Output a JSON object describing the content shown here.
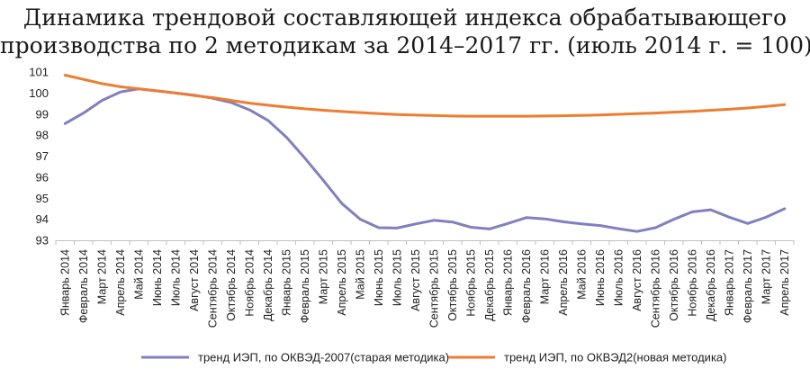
{
  "chart_data": {
    "type": "line",
    "title_line1": "Динамика трендовой составляющей индекса обрабатывающего",
    "title_line2": "производства по 2 методикам за 2014–2017 гг. (июль 2014 г. = 100)",
    "ylim": [
      93,
      101
    ],
    "yticks": [
      93,
      94,
      95,
      96,
      97,
      98,
      99,
      100,
      101
    ],
    "grid": false,
    "legend_position": "bottom",
    "categories": [
      "Январь 2014",
      "Февраль 2014",
      "Март 2014",
      "Апрель 2014",
      "Май 2014",
      "Июнь 2014",
      "Июль 2014",
      "Август 2014",
      "Сентябрь 2014",
      "Октябрь 2014",
      "Ноябрь 2014",
      "Декабрь 2014",
      "Январь 2015",
      "Февраль 2015",
      "Март 2015",
      "Апрель 2015",
      "Май 2015",
      "Июнь 2015",
      "Июль 2015",
      "Август 2015",
      "Сентябрь 2015",
      "Октябрь 2015",
      "Ноябрь 2015",
      "Декабрь 2015",
      "Январь 2016",
      "Февраль 2016",
      "Март 2016",
      "Апрель 2016",
      "Май 2016",
      "Июнь 2016",
      "Июль 2016",
      "Август 2016",
      "Сентябрь 2016",
      "Октябрь 2016",
      "Ноябрь 2016",
      "Декабрь 2016",
      "Январь 2017",
      "Февраль 2017",
      "Март 2017",
      "Апрель 2017"
    ],
    "series": [
      {
        "name": "тренд  ИЭП, по ОКВЭД-2007(старая методика)",
        "color": "#8080bf",
        "values": [
          98.55,
          99.05,
          99.65,
          100.05,
          100.2,
          100.1,
          100.0,
          99.9,
          99.75,
          99.55,
          99.2,
          98.7,
          97.9,
          96.9,
          95.85,
          94.75,
          94.0,
          93.6,
          93.58,
          93.78,
          93.95,
          93.87,
          93.62,
          93.54,
          93.8,
          94.08,
          94.02,
          93.88,
          93.78,
          93.7,
          93.55,
          93.42,
          93.6,
          94.0,
          94.35,
          94.45,
          94.1,
          93.8,
          94.1,
          94.5
        ]
      },
      {
        "name": "тренд  ИЭП, по ОКВЭД2(новая методика)",
        "color": "#ed7d31",
        "values": [
          100.85,
          100.65,
          100.45,
          100.3,
          100.2,
          100.1,
          100.0,
          99.88,
          99.78,
          99.65,
          99.52,
          99.42,
          99.33,
          99.25,
          99.18,
          99.12,
          99.07,
          99.02,
          98.98,
          98.95,
          98.93,
          98.91,
          98.9,
          98.9,
          98.9,
          98.9,
          98.91,
          98.92,
          98.94,
          98.96,
          98.99,
          99.02,
          99.05,
          99.09,
          99.13,
          99.18,
          99.23,
          99.29,
          99.36,
          99.45
        ]
      }
    ]
  }
}
